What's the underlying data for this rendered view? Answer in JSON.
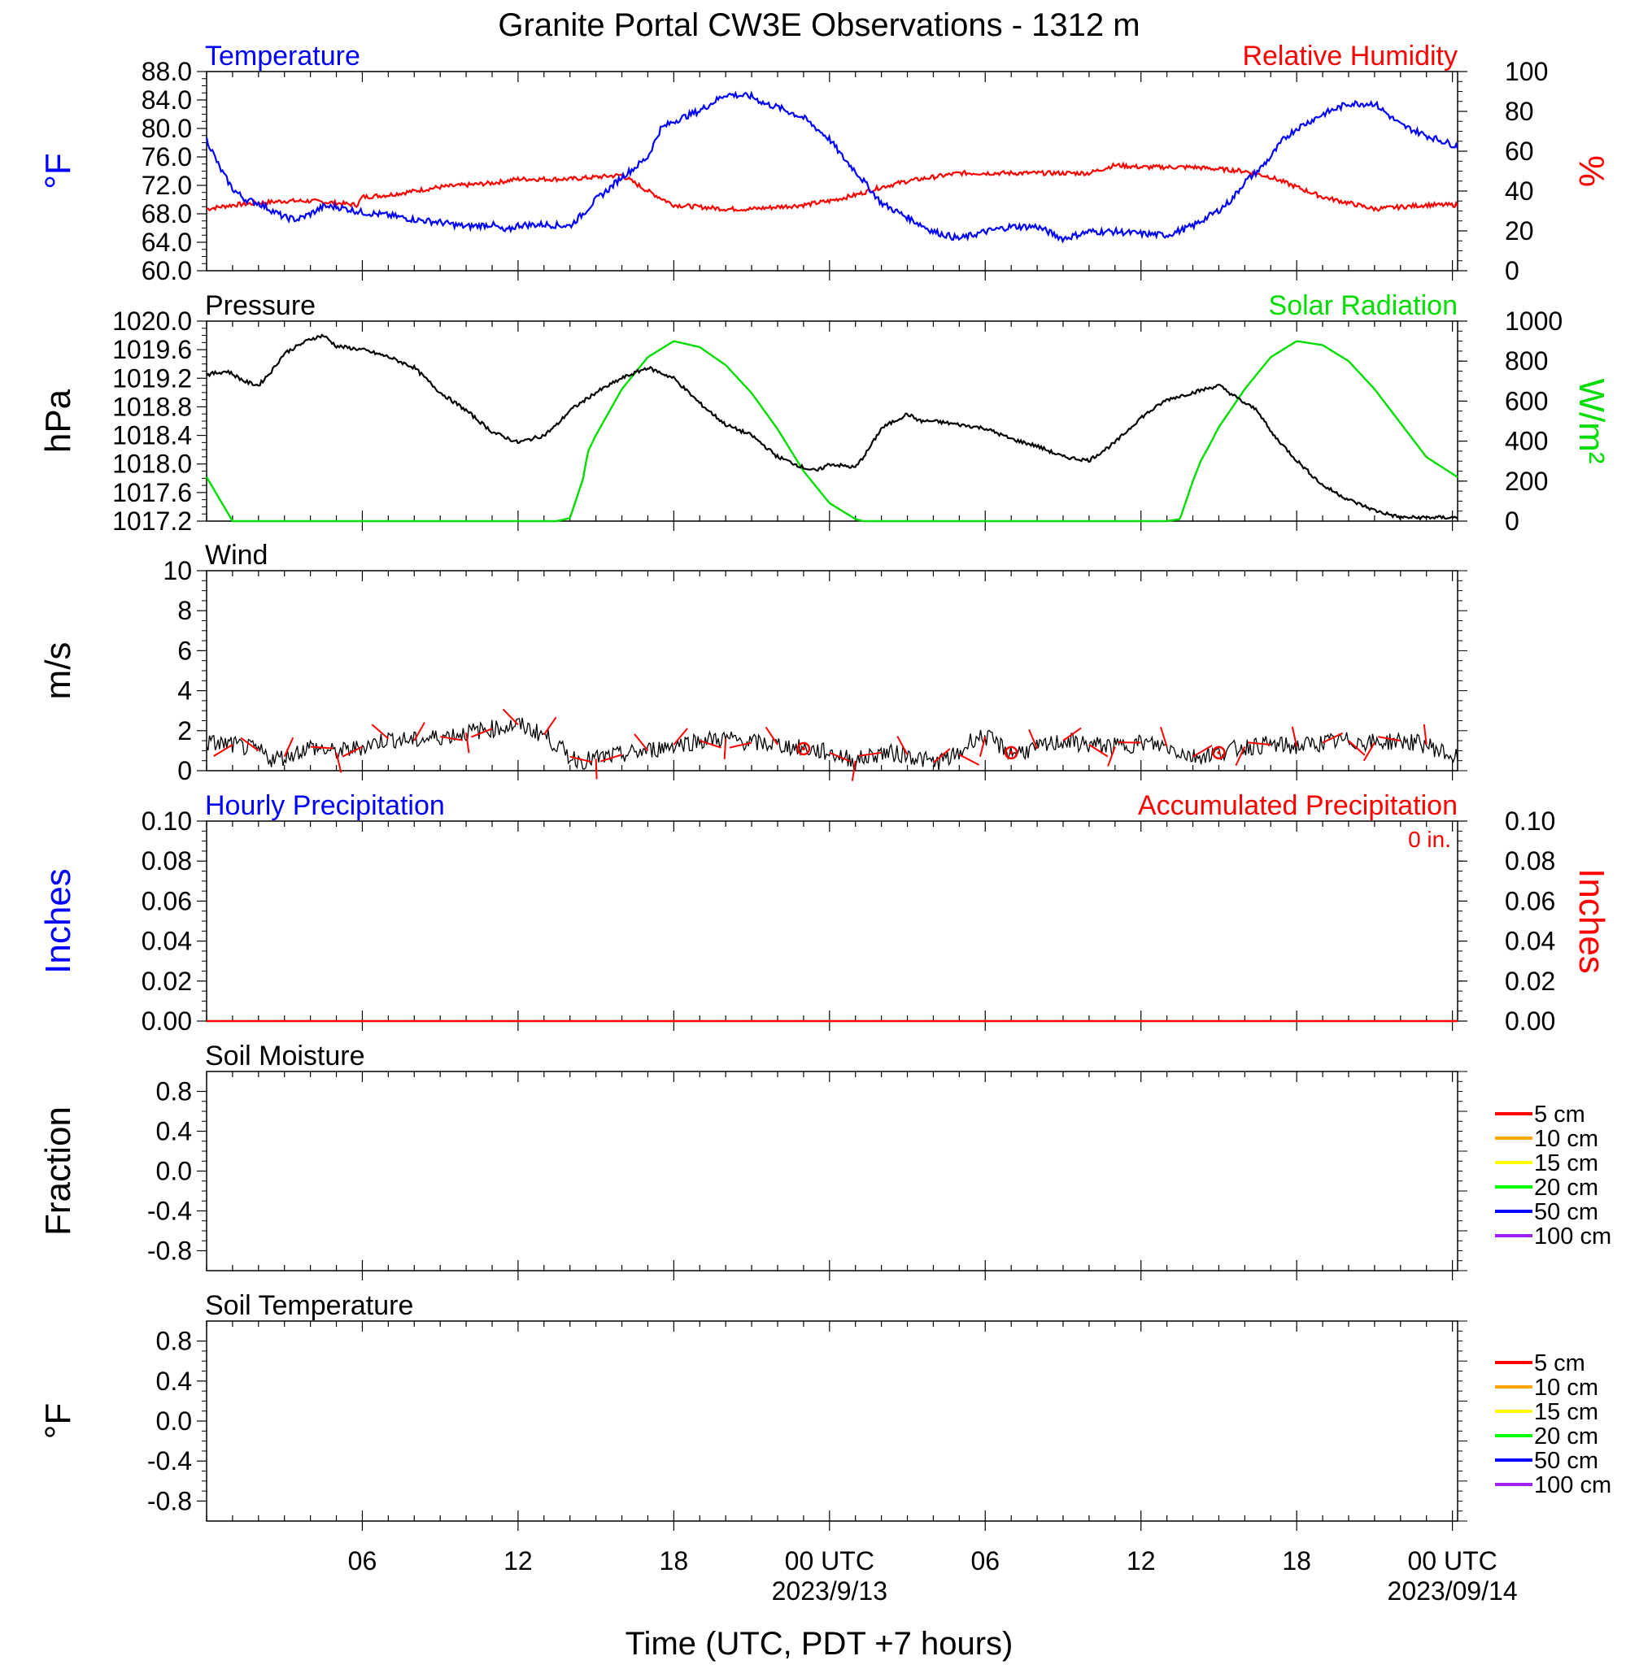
{
  "title": "Granite Portal CW3E Observations - 1312 m",
  "x_axis": {
    "label": "Time (UTC, PDT +7 hours)",
    "tick_labels": [
      "06",
      "12",
      "18",
      "00 UTC",
      "06",
      "12",
      "18",
      "00 UTC"
    ],
    "date_labels": [
      "2023/9/13",
      "2023/09/14"
    ]
  },
  "panels": {
    "temp": {
      "left_title": "Temperature",
      "right_title": "Relative Humidity",
      "left_unit": "°F",
      "right_unit": "%"
    },
    "pres": {
      "left_title": "Pressure",
      "right_title": "Solar Radiation",
      "left_unit": "hPa",
      "right_unit": "W/m²"
    },
    "wind": {
      "left_title": "Wind",
      "left_unit": "m/s"
    },
    "precip": {
      "left_title": "Hourly Precipitation",
      "right_title": "Accumulated Precipitation",
      "left_unit": "Inches",
      "right_unit": "Inches",
      "accum_note": "0 in."
    },
    "soilm": {
      "left_title": "Soil Moisture",
      "left_unit": "Fraction"
    },
    "soilt": {
      "left_title": "Soil Temperature",
      "left_unit": "°F"
    }
  },
  "soil_legend": [
    "5 cm",
    "10 cm",
    "15 cm",
    "20 cm",
    "50 cm",
    "100 cm"
  ],
  "colors": {
    "temperature": "#0000ff",
    "humidity": "#ff0000",
    "pressure": "#000000",
    "solar": "#00dd00",
    "wind_speed": "#000000",
    "wind_barb": "#ff0000",
    "soil_5cm": "#ff0000",
    "soil_10cm": "#ffa500",
    "soil_15cm": "#ffff00",
    "soil_20cm": "#00ff00",
    "soil_50cm": "#0000ff",
    "soil_100cm": "#a020f0"
  },
  "chart_data": [
    {
      "type": "line",
      "title": "Temperature / Relative Humidity",
      "x_unit": "hours UTC since 2023-09-12 00:00",
      "xlim": [
        1,
        49.2
      ],
      "ylim_left": [
        60,
        88
      ],
      "ylim_right": [
        0,
        100
      ],
      "y_ticks_left": [
        "60.0",
        "64.0",
        "68.0",
        "72.0",
        "76.0",
        "80.0",
        "84.0",
        "88.0"
      ],
      "y_ticks_right": [
        "0",
        "20",
        "40",
        "60",
        "80",
        "100"
      ],
      "series": [
        {
          "name": "Temperature",
          "axis": "left",
          "x": [
            1,
            1.5,
            2,
            2.5,
            3,
            3.5,
            4,
            4.5,
            5,
            5.5,
            6,
            7,
            8,
            9,
            10,
            11,
            12,
            12.5,
            13,
            14,
            15,
            15.5,
            16,
            16.5,
            17,
            17.5,
            18,
            18.5,
            19,
            20,
            21,
            22,
            22.5,
            23,
            24,
            25,
            25.5,
            26,
            27,
            28,
            29,
            30,
            31,
            32,
            33,
            34,
            35,
            36,
            37,
            38,
            39,
            40,
            40.5,
            41,
            41.5,
            42,
            42.5,
            43,
            43.5,
            44,
            45,
            46,
            46.5,
            47,
            48,
            49.2
          ],
          "y": [
            78.5,
            74.5,
            71.5,
            70,
            69.5,
            68.5,
            67.5,
            67.2,
            68,
            69,
            69,
            68.2,
            67.8,
            67.2,
            66.8,
            66.2,
            66.5,
            65.5,
            66.4,
            66.5,
            66.3,
            68,
            70,
            71.5,
            73.2,
            74.5,
            76,
            80,
            81,
            82.5,
            84.8,
            84.5,
            83.5,
            83,
            81.5,
            78.5,
            76,
            74,
            69.5,
            67.5,
            65.5,
            64.5,
            65.5,
            66.2,
            66.2,
            64.5,
            65.5,
            65.5,
            65.2,
            65,
            66.3,
            68.5,
            70,
            72.5,
            74,
            76,
            78.5,
            80,
            81,
            82,
            83.5,
            83.5,
            82,
            80.5,
            79,
            77.5
          ]
        },
        {
          "name": "Relative Humidity",
          "axis": "right",
          "x": [
            1,
            2,
            3,
            4,
            5,
            6,
            6.8,
            7,
            8,
            9,
            10,
            11,
            12,
            13,
            14,
            15,
            16,
            17,
            17.5,
            18,
            19,
            20,
            21,
            22,
            23,
            24,
            25,
            26,
            27,
            28,
            29,
            30,
            31,
            32,
            33,
            34,
            35,
            36,
            37,
            38,
            39,
            40,
            41,
            42,
            43,
            44,
            45,
            46,
            47,
            48,
            49.2
          ],
          "y": [
            31,
            33,
            34,
            35,
            35,
            34,
            33,
            37,
            38,
            40,
            42,
            43,
            44,
            46,
            46,
            46,
            47,
            48,
            44,
            40,
            33,
            32,
            31,
            31,
            32,
            33,
            35,
            38,
            42,
            45,
            47,
            49,
            49,
            49,
            49,
            49,
            49,
            53,
            52,
            52,
            52,
            51,
            50,
            47,
            42,
            37,
            34,
            31,
            32,
            33,
            33
          ]
        }
      ]
    },
    {
      "type": "line",
      "title": "Pressure / Solar Radiation",
      "xlim": [
        1,
        49.2
      ],
      "ylim_left": [
        1017.2,
        1020.0
      ],
      "ylim_right": [
        0,
        1000
      ],
      "y_ticks_left": [
        "1017.2",
        "1017.6",
        "1018.0",
        "1018.4",
        "1018.8",
        "1019.2",
        "1019.6",
        "1020.0"
      ],
      "y_ticks_right": [
        "0",
        "200",
        "400",
        "600",
        "800",
        "1000"
      ],
      "series": [
        {
          "name": "Pressure",
          "axis": "left",
          "x": [
            1,
            1.8,
            2.5,
            3,
            3.5,
            4,
            5,
            5.5,
            6,
            7,
            8,
            9,
            10,
            11,
            12,
            13,
            14,
            14.5,
            15,
            16,
            17,
            18,
            19,
            20,
            21,
            22,
            23,
            24,
            24.5,
            25,
            26,
            26.5,
            27,
            28,
            28.5,
            29,
            30,
            31,
            32,
            33,
            34,
            35,
            36,
            37,
            38,
            39,
            40,
            41,
            41.5,
            42,
            43,
            44,
            45,
            46,
            47,
            48,
            49.2
          ],
          "y": [
            1019.25,
            1019.3,
            1019.15,
            1019.1,
            1019.3,
            1019.55,
            1019.75,
            1019.8,
            1019.65,
            1019.6,
            1019.5,
            1019.35,
            1019.0,
            1018.75,
            1018.45,
            1018.3,
            1018.4,
            1018.55,
            1018.75,
            1019.0,
            1019.2,
            1019.35,
            1019.2,
            1018.85,
            1018.55,
            1018.4,
            1018.1,
            1017.95,
            1017.9,
            1018.0,
            1017.95,
            1018.2,
            1018.5,
            1018.7,
            1018.6,
            1018.6,
            1018.55,
            1018.5,
            1018.35,
            1018.25,
            1018.1,
            1018.05,
            1018.3,
            1018.65,
            1018.9,
            1019.0,
            1019.1,
            1018.85,
            1018.75,
            1018.45,
            1018.05,
            1017.7,
            1017.5,
            1017.35,
            1017.25,
            1017.25,
            1017.25
          ]
        },
        {
          "name": "Solar Radiation",
          "axis": "right",
          "x": [
            1,
            2,
            14.5,
            15,
            15.5,
            15.7,
            16,
            17,
            18,
            19,
            20,
            21,
            22,
            23,
            24,
            25,
            26,
            26.3,
            38,
            38.5,
            39,
            39.3,
            39.6,
            40,
            41,
            42,
            43,
            44,
            45,
            46,
            47,
            48,
            49.2
          ],
          "y": [
            220,
            0,
            0,
            15,
            210,
            350,
            430,
            660,
            820,
            900,
            870,
            780,
            640,
            460,
            250,
            90,
            10,
            0,
            0,
            10,
            200,
            300,
            370,
            470,
            660,
            820,
            900,
            880,
            800,
            660,
            490,
            320,
            220
          ]
        }
      ]
    },
    {
      "type": "line",
      "title": "Wind",
      "xlim": [
        1,
        49.2
      ],
      "ylim": [
        0,
        10
      ],
      "y_ticks": [
        "0",
        "2",
        "4",
        "6",
        "8",
        "10"
      ],
      "series": [
        {
          "name": "Wind speed",
          "x": [
            1,
            2,
            3,
            3.5,
            4,
            5,
            6,
            7,
            8,
            9,
            10,
            11,
            12,
            13,
            14,
            15,
            15.5,
            16,
            17,
            18,
            19,
            20,
            21,
            22,
            23,
            24,
            25,
            26,
            27,
            28,
            29,
            30,
            30.5,
            31,
            32,
            33,
            34,
            35,
            36,
            37,
            38,
            39,
            40,
            41,
            42,
            43,
            44,
            45,
            46,
            47,
            48,
            49.2
          ],
          "y": [
            1.4,
            1.3,
            1.0,
            0.6,
            0.7,
            1.2,
            0.9,
            1.2,
            1.6,
            1.5,
            1.7,
            1.9,
            2.1,
            2.3,
            1.8,
            0.7,
            0.5,
            0.6,
            0.8,
            1.0,
            1.3,
            1.5,
            1.6,
            1.4,
            1.3,
            1.1,
            0.9,
            0.5,
            0.9,
            0.8,
            0.4,
            0.8,
            1.6,
            1.7,
            0.9,
            1.1,
            1.5,
            1.3,
            1.2,
            1.4,
            1.2,
            0.7,
            0.9,
            1.2,
            1.3,
            1.2,
            1.4,
            1.5,
            1.4,
            1.5,
            1.3,
            0.6
          ]
        }
      ]
    },
    {
      "type": "line",
      "title": "Hourly Precipitation / Accumulated Precipitation",
      "xlim": [
        1,
        49.2
      ],
      "ylim_left": [
        0,
        0.1
      ],
      "ylim_right": [
        0,
        0.1
      ],
      "y_ticks_left": [
        "0.00",
        "0.02",
        "0.04",
        "0.06",
        "0.08",
        "0.10"
      ],
      "y_ticks_right": [
        "0.00",
        "0.02",
        "0.04",
        "0.06",
        "0.08",
        "0.10"
      ],
      "series": [
        {
          "name": "Hourly Precipitation",
          "axis": "left",
          "x": [
            1,
            49.2
          ],
          "y": [
            0,
            0
          ]
        },
        {
          "name": "Accumulated Precipitation",
          "axis": "right",
          "x": [
            1,
            49.2
          ],
          "y": [
            0,
            0
          ]
        }
      ]
    },
    {
      "type": "line",
      "title": "Soil Moisture",
      "xlim": [
        1,
        49.2
      ],
      "ylim": [
        -1.0,
        1.0
      ],
      "y_ticks": [
        "-0.8",
        "-0.4",
        "0.0",
        "0.4",
        "0.8"
      ],
      "series": []
    },
    {
      "type": "line",
      "title": "Soil Temperature",
      "xlim": [
        1,
        49.2
      ],
      "ylim": [
        -1.0,
        1.0
      ],
      "y_ticks": [
        "-0.8",
        "-0.4",
        "0.0",
        "0.4",
        "0.8"
      ],
      "series": []
    }
  ]
}
